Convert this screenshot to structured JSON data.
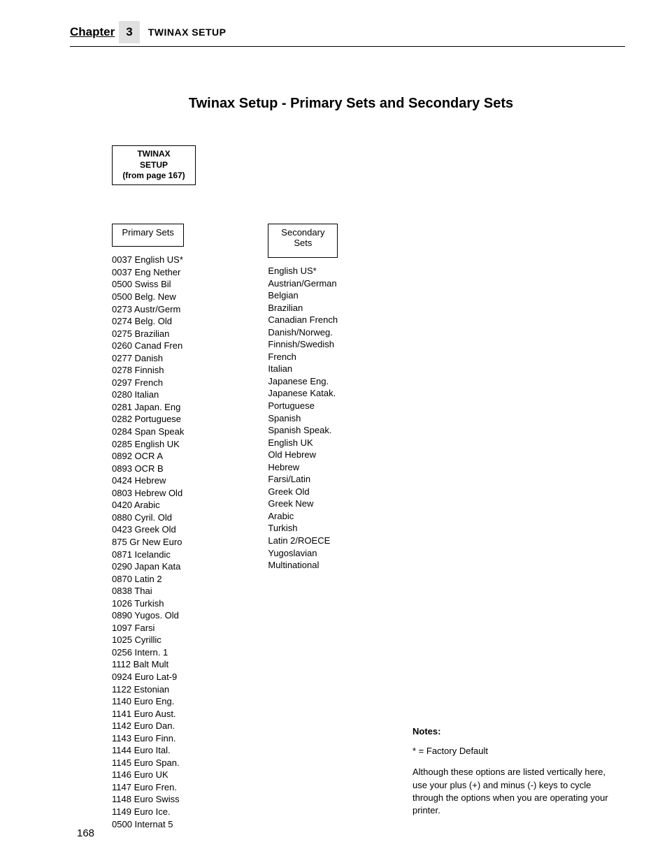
{
  "header": {
    "chapter_label": "Chapter",
    "chapter_number": "3",
    "section_title": "TWINAX SETUP"
  },
  "title": "Twinax Setup - Primary Sets and Secondary Sets",
  "root_box": {
    "line1": "TWINAX",
    "line2": "SETUP",
    "from": "(from page 167)"
  },
  "primary": {
    "label": "Primary Sets",
    "items": [
      "0037 English US*",
      "0037 Eng Nether",
      "0500 Swiss Bil",
      "0500 Belg. New",
      "0273 Austr/Germ",
      "0274 Belg. Old",
      "0275 Brazilian",
      "0260 Canad Fren",
      "0277 Danish",
      "0278 Finnish",
      "0297 French",
      "0280 Italian",
      "0281 Japan. Eng",
      "0282 Portuguese",
      "0284 Span Speak",
      "0285 English UK",
      "0892 OCR A",
      "0893 OCR B",
      "0424 Hebrew",
      "0803 Hebrew Old",
      "0420 Arabic",
      "0880 Cyril. Old",
      "0423 Greek Old",
      "875 Gr New Euro",
      "0871 Icelandic",
      "0290 Japan Kata",
      "0870 Latin 2",
      "0838 Thai",
      "1026 Turkish",
      "0890 Yugos. Old",
      "1097 Farsi",
      "1025 Cyrillic",
      "0256 Intern. 1",
      "1112 Balt Mult",
      "0924 Euro Lat-9",
      "1122 Estonian",
      "1140 Euro Eng.",
      "1141 Euro Aust.",
      "1142 Euro Dan.",
      "1143 Euro Finn.",
      "1144 Euro Ital.",
      "1145 Euro Span.",
      "1146 Euro UK",
      "1147 Euro Fren.",
      "1148 Euro Swiss",
      "1149 Euro Ice.",
      "0500 Internat 5"
    ]
  },
  "secondary": {
    "label": "Secondary Sets",
    "items": [
      "English US*",
      "Austrian/German",
      "Belgian",
      "Brazilian",
      "Canadian French",
      "Danish/Norweg.",
      "Finnish/Swedish",
      "French",
      "Italian",
      "Japanese Eng.",
      "Japanese Katak.",
      "Portuguese",
      "Spanish",
      "Spanish Speak.",
      "English UK",
      "Old Hebrew",
      "Hebrew",
      "Farsi/Latin",
      "Greek Old",
      "Greek New",
      "Arabic",
      "Turkish",
      "Latin 2/ROECE",
      "Yugoslavian",
      "Multinational"
    ]
  },
  "notes": {
    "title": "Notes:",
    "line1": "* = Factory Default",
    "line2": "Although these options are listed vertically here, use your plus (+) and minus (-) keys to cycle through the options when you are operating your printer."
  },
  "page_number": "168"
}
